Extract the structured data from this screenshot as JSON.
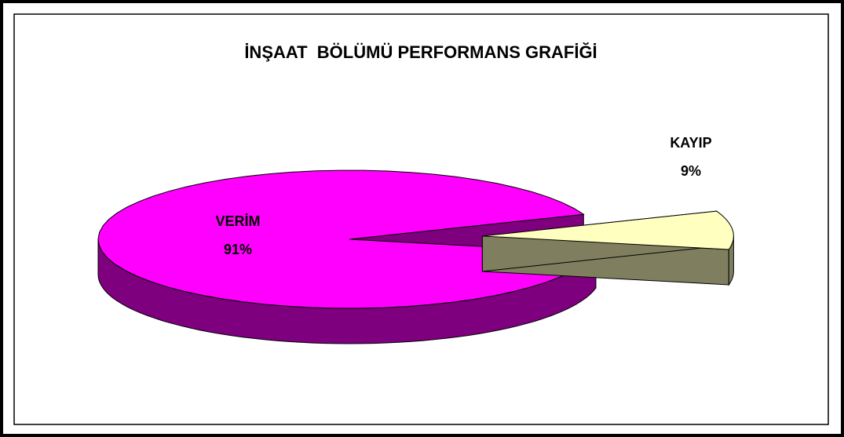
{
  "chart_data": {
    "type": "pie3d",
    "title": "İNŞAAT  BÖLÜMÜ PERFORMANS GRAFİĞİ",
    "categories": [
      "VERİM",
      "KAYIP"
    ],
    "values": [
      91,
      9
    ],
    "value_labels": [
      "91%",
      "9%"
    ],
    "colors": [
      "#ff00ff",
      "#ffffc0"
    ]
  }
}
